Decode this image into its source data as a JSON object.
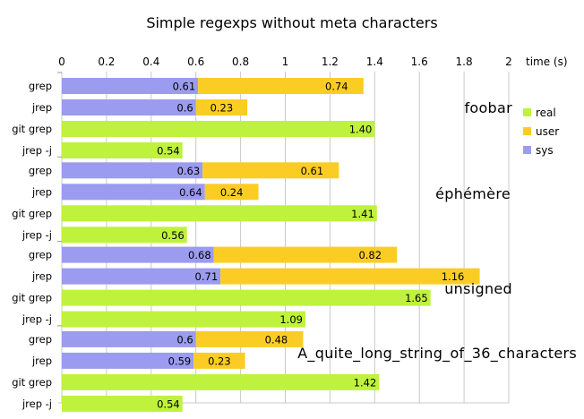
{
  "chart_data": {
    "type": "bar",
    "orientation": "horizontal",
    "stacking": "sys and user stacked, real separate",
    "title": "Simple regexps without meta characters",
    "axis_unit_label": "time (s)",
    "x_ticks": [
      "0",
      "0.2",
      "0.4",
      "0.6",
      "0.8",
      "1",
      "1.2",
      "1.4",
      "1.6",
      "1.8",
      "2"
    ],
    "xlim": [
      0,
      2
    ],
    "grid": "vertical",
    "legend_position": "right",
    "legend": [
      {
        "name": "real",
        "color": "#bff23c"
      },
      {
        "name": "user",
        "color": "#fbcd24"
      },
      {
        "name": "sys",
        "color": "#9b9bef"
      }
    ],
    "groups": [
      {
        "label": "foobar",
        "rows": [
          {
            "cat": "grep",
            "sys": 0.61,
            "user": 0.74
          },
          {
            "cat": "jrep",
            "sys": 0.6,
            "user": 0.23
          },
          {
            "cat": "git grep",
            "real": 1.4
          },
          {
            "cat": "jrep -j",
            "real": 0.54
          }
        ]
      },
      {
        "label": "éphémère",
        "rows": [
          {
            "cat": "grep",
            "sys": 0.63,
            "user": 0.61
          },
          {
            "cat": "jrep",
            "sys": 0.64,
            "user": 0.24
          },
          {
            "cat": "git grep",
            "real": 1.41
          },
          {
            "cat": "jrep -j",
            "real": 0.56
          }
        ]
      },
      {
        "label": "unsigned",
        "rows": [
          {
            "cat": "grep",
            "sys": 0.68,
            "user": 0.82
          },
          {
            "cat": "jrep",
            "sys": 0.71,
            "user": 1.16
          },
          {
            "cat": "git grep",
            "real": 1.65
          },
          {
            "cat": "jrep -j",
            "real": 1.09
          }
        ]
      },
      {
        "label": "A_quite_long_string_of_36_characters",
        "rows": [
          {
            "cat": "grep",
            "sys": 0.6,
            "user": 0.48
          },
          {
            "cat": "jrep",
            "sys": 0.59,
            "user": 0.23
          },
          {
            "cat": "git grep",
            "real": 1.42
          },
          {
            "cat": "jrep -j",
            "real": 0.54
          }
        ]
      }
    ]
  }
}
